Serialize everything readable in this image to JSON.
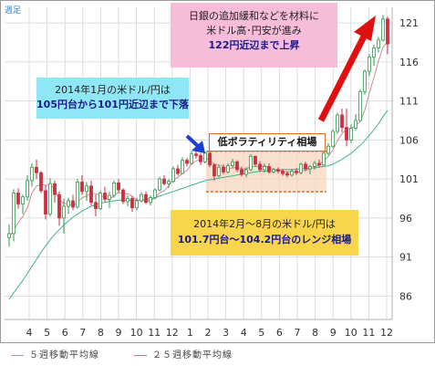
{
  "corner_label": "週足",
  "legend": {
    "ma5": "５週移動平均線",
    "ma25": "２５週移動平均線"
  },
  "colors": {
    "up": "#2e9b4a",
    "down": "#cc2f3f",
    "ma5": "#d08a95",
    "ma25": "#3fb38f",
    "arrow_red": "#e01010",
    "arrow_blue": "#1b3fd0",
    "range_box": "#e26a1f"
  },
  "callouts": {
    "pink": {
      "line1": "日銀の追加緩和などを材料に",
      "line2": "米ドル高･円安が進み",
      "line3": "122円近辺まで上昇"
    },
    "blue": {
      "line1": "2014年1月の米ドル/円は",
      "line2": "105円台から101円近辺まで下落"
    },
    "yellow": {
      "line1": "2014年2月～8月の米ドル/円は",
      "line2": "101.7円台～104.2円台のレンジ相場"
    },
    "center": "低ボラティリティ相場"
  },
  "chart_data": {
    "type": "candlestick",
    "y_axis_side": "right",
    "ylim": [
      83,
      123
    ],
    "y_ticks": [
      86,
      91,
      96,
      101,
      106,
      111,
      116,
      121
    ],
    "x_ticks": [
      "4",
      "5",
      "6",
      "7",
      "8",
      "9",
      "10",
      "11",
      "12",
      "1",
      "2",
      "3",
      "4",
      "5",
      "6",
      "7",
      "8",
      "9",
      "10",
      "11",
      "12"
    ],
    "grid": true,
    "range_band": [
      101.7,
      104.2
    ],
    "series": [
      {
        "name": "price",
        "ohlc": [
          [
            93.5,
            95.2,
            92.3,
            94.0
          ],
          [
            94.0,
            99.7,
            93.0,
            99.2
          ],
          [
            99.2,
            99.8,
            97.2,
            97.8
          ],
          [
            97.8,
            99.0,
            96.5,
            98.7
          ],
          [
            98.7,
            101.5,
            98.2,
            100.8
          ],
          [
            100.8,
            103.0,
            100.0,
            102.5
          ],
          [
            102.5,
            103.5,
            101.0,
            101.8
          ],
          [
            101.8,
            102.0,
            99.2,
            99.5
          ],
          [
            99.5,
            100.2,
            95.8,
            96.5
          ],
          [
            96.5,
            101.1,
            96.2,
            100.4
          ],
          [
            100.4,
            100.8,
            98.0,
            99.0
          ],
          [
            99.0,
            99.4,
            95.0,
            96.0
          ],
          [
            96.0,
            98.5,
            94.0,
            97.5
          ],
          [
            97.5,
            98.6,
            96.5,
            98.2
          ],
          [
            98.2,
            99.0,
            97.0,
            97.4
          ],
          [
            97.4,
            101.0,
            97.2,
            100.6
          ],
          [
            100.6,
            101.5,
            99.0,
            99.4
          ],
          [
            99.4,
            100.6,
            98.2,
            100.1
          ],
          [
            100.1,
            100.8,
            97.6,
            98.0
          ],
          [
            98.0,
            99.0,
            96.2,
            97.2
          ],
          [
            97.2,
            99.5,
            97.0,
            99.2
          ],
          [
            99.2,
            100.0,
            98.0,
            98.4
          ],
          [
            98.4,
            99.4,
            97.3,
            98.9
          ],
          [
            98.9,
            100.8,
            98.6,
            100.5
          ],
          [
            100.5,
            101.0,
            99.2,
            99.6
          ],
          [
            99.6,
            99.8,
            97.8,
            98.1
          ],
          [
            98.1,
            98.9,
            97.5,
            98.5
          ],
          [
            98.5,
            98.8,
            96.8,
            97.3
          ],
          [
            97.3,
            98.6,
            97.0,
            98.2
          ],
          [
            98.2,
            99.3,
            98.0,
            99.0
          ],
          [
            99.0,
            99.4,
            97.8,
            98.0
          ],
          [
            98.0,
            98.9,
            97.6,
            98.6
          ],
          [
            98.6,
            99.8,
            98.4,
            99.6
          ],
          [
            99.6,
            101.3,
            99.4,
            101.0
          ],
          [
            101.0,
            101.5,
            100.2,
            100.4
          ],
          [
            100.4,
            101.0,
            99.8,
            100.7
          ],
          [
            100.7,
            102.6,
            100.5,
            102.3
          ],
          [
            102.3,
            102.8,
            101.4,
            101.7
          ],
          [
            101.7,
            103.8,
            101.6,
            103.4
          ],
          [
            103.4,
            103.7,
            102.6,
            103.0
          ],
          [
            103.0,
            104.6,
            102.8,
            104.2
          ],
          [
            104.2,
            105.3,
            103.6,
            104.0
          ],
          [
            104.0,
            104.3,
            102.8,
            103.2
          ],
          [
            103.2,
            104.5,
            103.0,
            104.3
          ],
          [
            104.3,
            104.6,
            102.5,
            102.8
          ],
          [
            102.8,
            103.0,
            100.8,
            101.4
          ],
          [
            101.4,
            102.8,
            101.2,
            102.5
          ],
          [
            102.5,
            102.9,
            101.6,
            101.9
          ],
          [
            101.9,
            103.0,
            101.7,
            102.7
          ],
          [
            102.7,
            103.6,
            102.4,
            103.2
          ],
          [
            103.2,
            103.4,
            101.9,
            102.2
          ],
          [
            102.2,
            102.6,
            101.3,
            101.6
          ],
          [
            101.6,
            102.5,
            101.2,
            102.2
          ],
          [
            102.2,
            104.2,
            102.0,
            103.9
          ],
          [
            103.9,
            104.0,
            102.6,
            102.9
          ],
          [
            102.9,
            103.3,
            101.9,
            102.2
          ],
          [
            102.2,
            103.0,
            101.8,
            102.6
          ],
          [
            102.6,
            103.0,
            101.7,
            101.9
          ],
          [
            101.9,
            102.4,
            101.7,
            102.2
          ],
          [
            102.2,
            102.5,
            101.7,
            102.0
          ],
          [
            102.0,
            102.3,
            101.4,
            101.7
          ],
          [
            101.7,
            102.0,
            101.2,
            101.5
          ],
          [
            101.5,
            102.3,
            101.3,
            102.0
          ],
          [
            102.0,
            102.4,
            101.5,
            101.8
          ],
          [
            101.8,
            103.1,
            101.6,
            102.9
          ],
          [
            102.9,
            103.2,
            102.0,
            102.3
          ],
          [
            102.3,
            102.8,
            101.6,
            102.6
          ],
          [
            102.6,
            103.3,
            102.2,
            103.0
          ],
          [
            103.0,
            103.5,
            102.5,
            102.8
          ],
          [
            102.8,
            104.6,
            102.7,
            104.3
          ],
          [
            104.3,
            105.6,
            104.0,
            105.2
          ],
          [
            105.2,
            107.4,
            105.0,
            107.1
          ],
          [
            107.1,
            109.5,
            106.8,
            109.2
          ],
          [
            109.2,
            110.0,
            107.0,
            107.6
          ],
          [
            107.6,
            110.0,
            105.2,
            106.0
          ],
          [
            106.0,
            108.0,
            105.6,
            107.5
          ],
          [
            107.5,
            109.3,
            107.2,
            108.5
          ],
          [
            108.5,
            112.5,
            108.3,
            112.2
          ],
          [
            112.2,
            115.0,
            111.8,
            114.8
          ],
          [
            114.8,
            117.0,
            114.2,
            116.6
          ],
          [
            116.6,
            118.2,
            115.5,
            117.8
          ],
          [
            117.8,
            119.2,
            117.2,
            118.8
          ],
          [
            118.8,
            122.0,
            118.6,
            121.5
          ],
          [
            121.5,
            121.8,
            117.0,
            118.3
          ]
        ]
      },
      {
        "name": "５週移動平均線",
        "values": [
          93.5,
          94.4,
          95.4,
          96.2,
          97.3,
          99.2,
          100.1,
          100.3,
          100.2,
          100.2,
          99.8,
          98.3,
          97.9,
          97.8,
          97.6,
          98.0,
          98.6,
          98.8,
          99.2,
          99.1,
          98.9,
          98.6,
          98.3,
          98.9,
          99.3,
          99.1,
          99.1,
          98.8,
          98.3,
          98.2,
          98.2,
          98.2,
          98.6,
          99.2,
          99.5,
          100.1,
          100.9,
          101.2,
          101.7,
          102.1,
          102.9,
          103.3,
          103.6,
          103.7,
          103.4,
          102.9,
          102.8,
          102.6,
          102.3,
          102.4,
          102.5,
          102.3,
          102.3,
          102.6,
          102.6,
          102.6,
          102.7,
          102.5,
          102.2,
          102.2,
          102.0,
          101.9,
          101.9,
          101.8,
          102.0,
          102.1,
          102.3,
          102.5,
          102.8,
          103.3,
          103.9,
          104.7,
          105.9,
          106.8,
          107.4,
          107.5,
          107.8,
          108.4,
          109.8,
          112.0,
          114.0,
          116.1,
          117.9,
          118.6
        ]
      },
      {
        "name": "２５週移動平均線",
        "values": [
          85.6,
          86.4,
          87.2,
          88.0,
          88.9,
          89.8,
          90.7,
          91.6,
          92.4,
          93.2,
          93.9,
          94.5,
          95.1,
          95.6,
          96.1,
          96.5,
          96.9,
          97.2,
          97.5,
          97.7,
          97.9,
          98.0,
          98.1,
          98.2,
          98.3,
          98.3,
          98.3,
          98.3,
          98.3,
          98.3,
          98.4,
          98.5,
          98.6,
          98.8,
          99.0,
          99.2,
          99.4,
          99.6,
          99.8,
          100.0,
          100.2,
          100.4,
          100.6,
          100.8,
          100.9,
          101.0,
          101.1,
          101.2,
          101.3,
          101.4,
          101.5,
          101.6,
          101.7,
          101.8,
          101.9,
          102.0,
          102.0,
          102.1,
          102.1,
          102.1,
          102.2,
          102.2,
          102.2,
          102.2,
          102.3,
          102.3,
          102.4,
          102.4,
          102.5,
          102.6,
          102.7,
          102.9,
          103.2,
          103.5,
          103.9,
          104.3,
          104.8,
          105.3,
          105.9,
          106.6,
          107.3,
          108.1,
          109.0,
          109.8
        ]
      }
    ]
  }
}
